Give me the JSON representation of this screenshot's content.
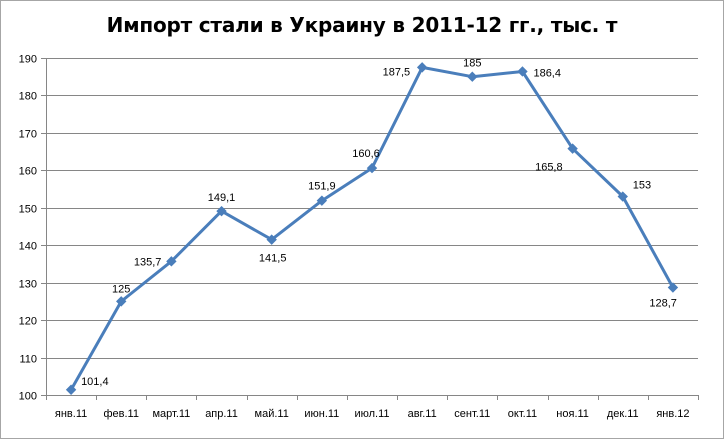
{
  "chart_data": {
    "type": "line",
    "title": "Импорт стали в Украину в 2011-12 гг., тыс. т",
    "categories": [
      "янв.11",
      "фев.11",
      "март.11",
      "апр.11",
      "май.11",
      "июн.11",
      "июл.11",
      "авг.11",
      "сент.11",
      "окт.11",
      "ноя.11",
      "дек.11",
      "янв.12"
    ],
    "series": [
      {
        "values": [
          101.4,
          125,
          135.7,
          149.1,
          141.5,
          151.9,
          160.6,
          187.5,
          185,
          186.4,
          165.8,
          153,
          128.7
        ],
        "labels": [
          "101,4",
          "125",
          "135,7",
          "149,1",
          "141,5",
          "151,9",
          "160,6",
          "187,5",
          "185",
          "186,4",
          "165,8",
          "153",
          "128,7"
        ],
        "color": "#4a7ebb",
        "marker": "diamond"
      }
    ],
    "ylim": [
      100,
      190
    ],
    "yticks": [
      100,
      110,
      120,
      130,
      140,
      150,
      160,
      170,
      180,
      190
    ],
    "xlabel": "",
    "ylabel": "",
    "grid": true,
    "legend": "none",
    "label_positions": [
      "right",
      "above",
      "left",
      "above",
      "below",
      "above",
      "above",
      "left",
      "above",
      "right",
      "left",
      "right",
      "right"
    ]
  }
}
